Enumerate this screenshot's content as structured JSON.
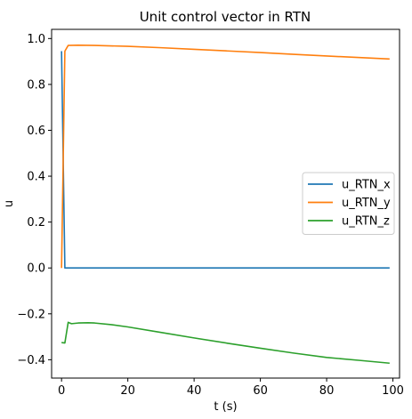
{
  "chart_data": {
    "type": "line",
    "title": "Unit control vector in RTN",
    "xlabel": "t (s)",
    "ylabel": "u",
    "xlim": [
      -3,
      102
    ],
    "ylim": [
      -0.48,
      1.04
    ],
    "xticks": [
      0,
      20,
      40,
      60,
      80,
      100
    ],
    "yticks": [
      -0.4,
      -0.2,
      0.0,
      0.2,
      0.4,
      0.6,
      0.8,
      1.0
    ],
    "ytick_labels": [
      "−0.4",
      "−0.2",
      "0.0",
      "0.2",
      "0.4",
      "0.6",
      "0.8",
      "1.0"
    ],
    "grid": false,
    "legend_position": "center-right",
    "series": [
      {
        "name": "u_RTN_x",
        "color": "#1f77b4",
        "points": [
          [
            0,
            0.945
          ],
          [
            1,
            0.0
          ],
          [
            2,
            0.0
          ],
          [
            10,
            0.0
          ],
          [
            20,
            0.0
          ],
          [
            40,
            0.0
          ],
          [
            60,
            0.0
          ],
          [
            80,
            0.0
          ],
          [
            99,
            0.0
          ]
        ]
      },
      {
        "name": "u_RTN_y",
        "color": "#ff7f0e",
        "points": [
          [
            0,
            0.0
          ],
          [
            1,
            0.945
          ],
          [
            2,
            0.97
          ],
          [
            5,
            0.971
          ],
          [
            10,
            0.97
          ],
          [
            20,
            0.966
          ],
          [
            30,
            0.96
          ],
          [
            40,
            0.953
          ],
          [
            50,
            0.946
          ],
          [
            60,
            0.939
          ],
          [
            70,
            0.931
          ],
          [
            80,
            0.924
          ],
          [
            90,
            0.917
          ],
          [
            99,
            0.911
          ]
        ]
      },
      {
        "name": "u_RTN_z",
        "color": "#2ca02c",
        "points": [
          [
            0,
            -0.325
          ],
          [
            1,
            -0.327
          ],
          [
            2,
            -0.237
          ],
          [
            3,
            -0.243
          ],
          [
            5,
            -0.24
          ],
          [
            8,
            -0.239
          ],
          [
            10,
            -0.24
          ],
          [
            15,
            -0.247
          ],
          [
            20,
            -0.257
          ],
          [
            30,
            -0.281
          ],
          [
            40,
            -0.305
          ],
          [
            50,
            -0.328
          ],
          [
            60,
            -0.35
          ],
          [
            70,
            -0.371
          ],
          [
            80,
            -0.39
          ],
          [
            90,
            -0.403
          ],
          [
            99,
            -0.415
          ]
        ]
      }
    ]
  }
}
